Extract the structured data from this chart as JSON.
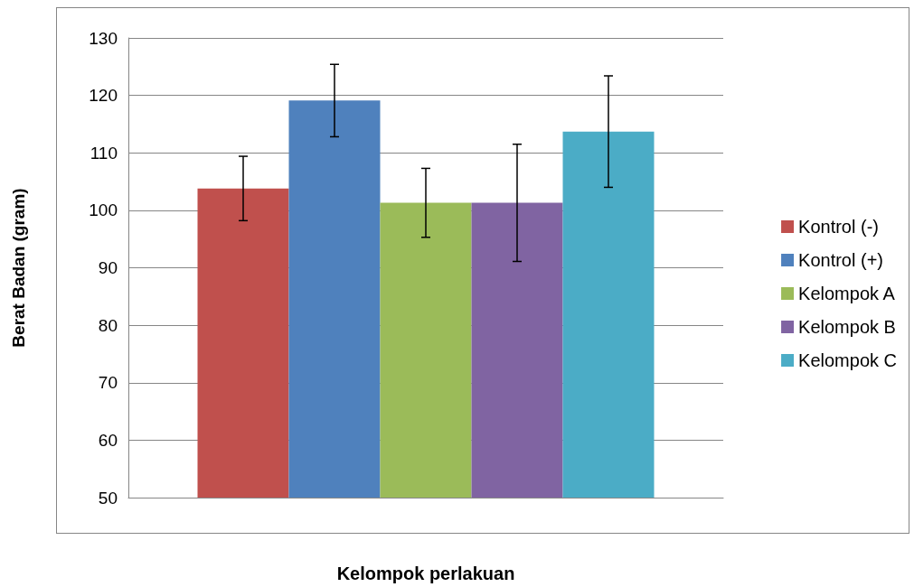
{
  "chart_data": {
    "type": "bar",
    "xlabel": "Kelompok perlakuan",
    "ylabel": "Berat Badan (gram)",
    "categories": [
      null
    ],
    "series": [
      {
        "name": "Kontrol (-)",
        "color": "#c0504d",
        "values": [
          103.8
        ],
        "errors": [
          5.6
        ]
      },
      {
        "name": "Kontrol (+)",
        "color": "#4f81bd",
        "values": [
          119.1
        ],
        "errors": [
          6.3
        ]
      },
      {
        "name": "Kelompok A",
        "color": "#9bbb59",
        "values": [
          101.3
        ],
        "errors": [
          6.0
        ]
      },
      {
        "name": "Kelompok B",
        "color": "#8064a2",
        "values": [
          101.3
        ],
        "errors": [
          10.2
        ]
      },
      {
        "name": "Kelompok C",
        "color": "#4bacc6",
        "values": [
          113.7
        ],
        "errors": [
          9.7
        ]
      }
    ],
    "ylim": [
      50,
      130
    ],
    "yticks": [
      50,
      60,
      70,
      80,
      90,
      100,
      110,
      120,
      130
    ],
    "grid": "y",
    "legend": "right"
  }
}
